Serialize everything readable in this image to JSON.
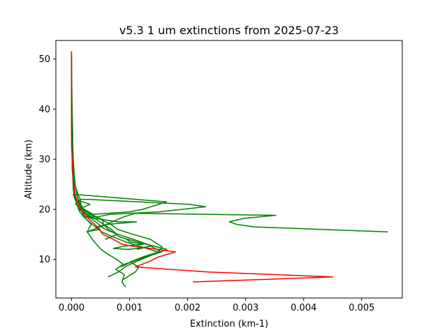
{
  "chart_data": {
    "type": "line",
    "title": "v5.3 1 um extinctions from 2025-07-23",
    "xlabel": "Extinction (km-1)",
    "ylabel": "Altitude (km)",
    "xlim": [
      -0.00027,
      0.0057
    ],
    "ylim": [
      2.3,
      53.7
    ],
    "xticks": [
      0.0,
      0.001,
      0.002,
      0.003,
      0.004,
      0.005
    ],
    "xtick_labels": [
      "0.000",
      "0.001",
      "0.002",
      "0.003",
      "0.004",
      "0.005"
    ],
    "yticks": [
      10,
      20,
      30,
      40,
      50
    ],
    "ytick_labels": [
      "10",
      "20",
      "30",
      "40",
      "50"
    ],
    "grid": false,
    "colors": {
      "green": "#008000",
      "red": "#ff0000"
    },
    "series": [
      {
        "color": "#008000",
        "points": [
          [
            0.00093,
            4.5
          ],
          [
            0.00087,
            5.5
          ],
          [
            0.00091,
            7
          ],
          [
            0.00076,
            8
          ],
          [
            0.00089,
            9
          ],
          [
            0.00078,
            10
          ],
          [
            0.00063,
            11
          ],
          [
            0.00051,
            12
          ],
          [
            0.00043,
            13
          ],
          [
            0.00036,
            14
          ],
          [
            0.00027,
            15.5
          ],
          [
            0.00034,
            17
          ],
          [
            0.00022,
            18.5
          ],
          [
            0.00018,
            19.5
          ],
          [
            0.00011,
            20.5
          ],
          [
            8e-05,
            21.5
          ],
          [
            6e-05,
            22.5
          ],
          [
            4e-05,
            24
          ],
          [
            3e-05,
            26
          ],
          [
            1e-05,
            28
          ],
          [
            1e-05,
            31
          ],
          [
            0.0,
            36
          ],
          [
            0.0,
            42
          ],
          [
            0.0,
            48
          ],
          [
            0.0,
            51.5
          ]
        ]
      },
      {
        "color": "#008000",
        "points": [
          [
            0.00063,
            6.5
          ],
          [
            0.00081,
            7.5
          ],
          [
            0.00092,
            8.5
          ],
          [
            0.0011,
            9.5
          ],
          [
            0.00131,
            10.5
          ],
          [
            0.00149,
            11.5
          ],
          [
            0.00121,
            12.5
          ],
          [
            0.00093,
            13.5
          ],
          [
            0.00071,
            14.5
          ],
          [
            0.00052,
            15.5
          ],
          [
            0.00041,
            16.5
          ],
          [
            0.00031,
            17.5
          ],
          [
            0.00021,
            18.5
          ],
          [
            0.00014,
            19.5
          ],
          [
            9e-05,
            21
          ],
          [
            5e-05,
            22.5
          ],
          [
            3e-05,
            24
          ],
          [
            2e-05,
            27
          ],
          [
            1e-05,
            31
          ],
          [
            0.0,
            36
          ],
          [
            0.0,
            43
          ],
          [
            0.0,
            49.5
          ]
        ]
      },
      {
        "color": "#008000",
        "points": [
          [
            0.00085,
            8.5
          ],
          [
            0.00103,
            9.5
          ],
          [
            0.00125,
            10.5
          ],
          [
            0.00155,
            11.5
          ],
          [
            0.00131,
            13
          ],
          [
            0.00107,
            14
          ],
          [
            0.0008,
            15
          ],
          [
            0.00058,
            16
          ],
          [
            0.00047,
            17
          ],
          [
            0.00036,
            18
          ],
          [
            0.00025,
            19
          ],
          [
            0.00019,
            20
          ],
          [
            0.00014,
            21
          ],
          [
            8e-05,
            22
          ],
          [
            6e-05,
            23
          ],
          [
            4e-05,
            25
          ],
          [
            2e-05,
            28
          ],
          [
            1e-05,
            32
          ],
          [
            0.0,
            38
          ],
          [
            0.0,
            45
          ],
          [
            0.0,
            50
          ]
        ]
      },
      {
        "color": "#008000",
        "points": [
          [
            0.0009,
            9
          ],
          [
            0.00116,
            10
          ],
          [
            0.00142,
            11
          ],
          [
            0.00164,
            12
          ],
          [
            0.00113,
            13.5
          ],
          [
            0.00082,
            14.5
          ],
          [
            0.00069,
            16
          ],
          [
            0.00055,
            17
          ],
          [
            0.00053,
            18
          ],
          [
            0.00031,
            19
          ],
          [
            0.00018,
            20
          ],
          [
            0.00016,
            21
          ],
          [
            0.00015,
            22
          ],
          [
            0.00011,
            23
          ],
          [
            7e-05,
            24.5
          ],
          [
            4e-05,
            27
          ],
          [
            2e-05,
            31
          ],
          [
            1e-05,
            36
          ],
          [
            0.0,
            42
          ],
          [
            0.0,
            50.5
          ]
        ]
      },
      {
        "color": "#008000",
        "points": [
          [
            0.00089,
            6
          ],
          [
            0.0011,
            7.5
          ],
          [
            0.00116,
            8.5
          ],
          [
            0.00101,
            9.5
          ],
          [
            0.00123,
            10.5
          ],
          [
            0.0015,
            11.5
          ],
          [
            0.00156,
            12.5
          ],
          [
            0.00136,
            14
          ],
          [
            0.00106,
            15
          ],
          [
            0.00079,
            16
          ],
          [
            0.00068,
            17
          ],
          [
            0.0005,
            18
          ],
          [
            0.00035,
            19
          ],
          [
            0.00021,
            20
          ],
          [
            0.00013,
            21.5
          ],
          [
            9e-05,
            23
          ],
          [
            6e-05,
            25
          ],
          [
            4e-05,
            28
          ],
          [
            3e-05,
            30
          ],
          [
            2e-05,
            33
          ],
          [
            2e-05,
            35
          ],
          [
            1e-05,
            40
          ],
          [
            0.0,
            48
          ]
        ]
      },
      {
        "color": "#008000",
        "points": [
          [
            0.00058,
            14
          ],
          [
            0.00078,
            15
          ],
          [
            0.00063,
            16
          ],
          [
            0.00055,
            17
          ],
          [
            0.00042,
            18
          ],
          [
            0.00027,
            19
          ],
          [
            0.00012,
            20
          ],
          [
            0.00032,
            21
          ],
          [
            6e-05,
            22
          ],
          [
            3e-05,
            23
          ],
          [
            0.00164,
            21.5
          ],
          [
            0.00123,
            20
          ],
          [
            0.001,
            19.5
          ],
          [
            0.00037,
            19
          ],
          [
            0.00022,
            20
          ],
          [
            7e-05,
            21
          ],
          [
            0.00015,
            22
          ],
          [
            0.00026,
            22
          ],
          [
            0.00203,
            21
          ],
          [
            0.00231,
            20.5
          ],
          [
            0.00152,
            19.5
          ],
          [
            0.00066,
            19
          ],
          [
            0.00045,
            18.5
          ],
          [
            0.00022,
            18.5
          ],
          [
            0.00052,
            18
          ],
          [
            0.0008,
            17.5
          ],
          [
            0.00112,
            17.5
          ],
          [
            0.00062,
            17
          ],
          [
            0.00042,
            16.5
          ],
          [
            0.00049,
            16
          ],
          [
            0.00026,
            15.5
          ]
        ]
      },
      {
        "color": "#008000",
        "points": [
          [
            0.00027,
            15.5
          ],
          [
            0.0005,
            16.5
          ],
          [
            0.0007,
            17.5
          ],
          [
            0.0009,
            18.5
          ],
          [
            0.0011,
            19.2
          ],
          [
            0.00352,
            18.8
          ],
          [
            0.00297,
            18.2
          ],
          [
            0.00272,
            17.5
          ],
          [
            0.00285,
            17.0
          ],
          [
            0.00314,
            16.5
          ],
          [
            0.00545,
            15.5
          ]
        ]
      },
      {
        "color": "#008000",
        "points": [
          [
            0.00095,
            14
          ],
          [
            0.00101,
            13.5
          ],
          [
            0.00123,
            13
          ],
          [
            0.00093,
            12.7
          ],
          [
            0.00072,
            12.2
          ],
          [
            0.00097,
            12
          ],
          [
            0.00121,
            12.3
          ],
          [
            0.00137,
            12.7
          ],
          [
            0.00113,
            12
          ]
        ]
      },
      {
        "color": "#ff0000",
        "points": [
          [
            0.00209,
            5.5
          ],
          [
            0.0045,
            6.5
          ],
          [
            0.00236,
            7.5
          ],
          [
            0.0011,
            8.5
          ],
          [
            0.00132,
            9.5
          ],
          [
            0.0015,
            10.5
          ],
          [
            0.00179,
            11.5
          ],
          [
            0.0015,
            12
          ],
          [
            0.00113,
            12.5
          ],
          [
            0.00088,
            13
          ],
          [
            0.00072,
            14
          ],
          [
            0.00054,
            15
          ],
          [
            0.00048,
            16
          ],
          [
            0.0004,
            17
          ],
          [
            0.00031,
            18
          ],
          [
            0.00022,
            19
          ],
          [
            0.00016,
            20
          ],
          [
            0.00012,
            21
          ],
          [
            9e-05,
            22
          ],
          [
            6e-05,
            23
          ],
          [
            5e-05,
            24
          ],
          [
            3e-05,
            26
          ],
          [
            2e-05,
            28
          ],
          [
            1e-05,
            30
          ],
          [
            0.0,
            33
          ],
          [
            0.0,
            37
          ],
          [
            0.0,
            42
          ],
          [
            0.0,
            47
          ],
          [
            0.0,
            51.5
          ]
        ]
      }
    ]
  }
}
